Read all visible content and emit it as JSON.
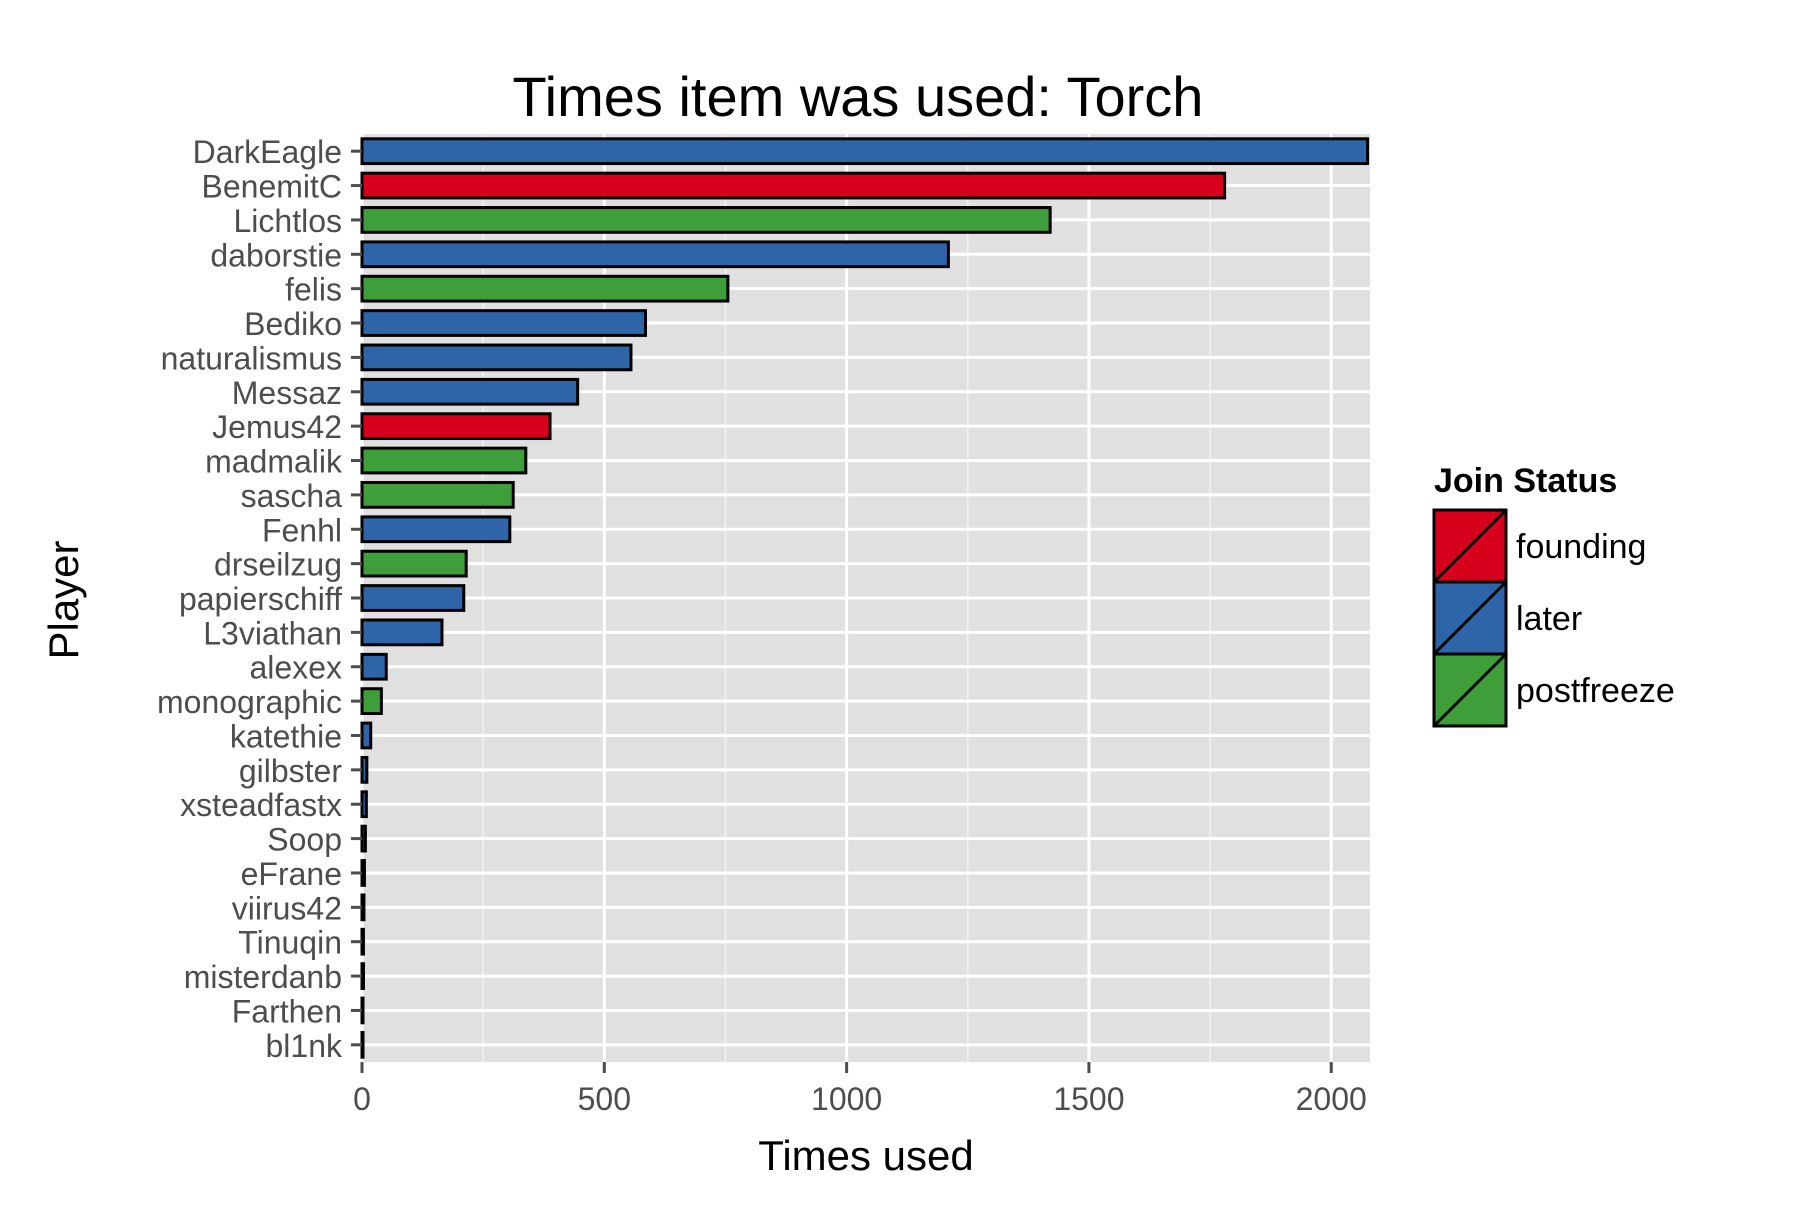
{
  "chart_data": {
    "type": "bar",
    "orientation": "horizontal",
    "title": "Times item was used: Torch",
    "xlabel": "Times used",
    "ylabel": "Player",
    "xlim": [
      0,
      2080
    ],
    "xticks": [
      0,
      500,
      1000,
      1500,
      2000
    ],
    "grid": true,
    "legend_position": "right",
    "legend_title": "Join Status",
    "groups": [
      {
        "name": "founding",
        "color": "#d7001c"
      },
      {
        "name": "later",
        "color": "#2d65a8"
      },
      {
        "name": "postfreeze",
        "color": "#3e9e3a"
      }
    ],
    "categories": [
      "DarkEagle",
      "BenemitC",
      "Lichtlos",
      "daborstie",
      "felis",
      "Bediko",
      "naturalismus",
      "Messaz",
      "Jemus42",
      "madmalik",
      "sascha",
      "Fenhl",
      "drseilzug",
      "papierschiff",
      "L3viathan",
      "alexex",
      "monographic",
      "katethie",
      "gilbster",
      "xsteadfastx",
      "Soop",
      "eFrane",
      "viirus42",
      "Tinuqin",
      "misterdanb",
      "Farthen",
      "bl1nk"
    ],
    "values": [
      2075,
      1780,
      1420,
      1210,
      755,
      585,
      555,
      445,
      388,
      338,
      312,
      305,
      215,
      210,
      165,
      50,
      40,
      18,
      10,
      9,
      7,
      5,
      4,
      3,
      3,
      2,
      2
    ],
    "status": [
      "later",
      "founding",
      "postfreeze",
      "later",
      "postfreeze",
      "later",
      "later",
      "later",
      "founding",
      "postfreeze",
      "postfreeze",
      "later",
      "postfreeze",
      "later",
      "later",
      "later",
      "postfreeze",
      "later",
      "later",
      "later",
      "later",
      "later",
      "later",
      "later",
      "later",
      "later",
      "later"
    ]
  }
}
